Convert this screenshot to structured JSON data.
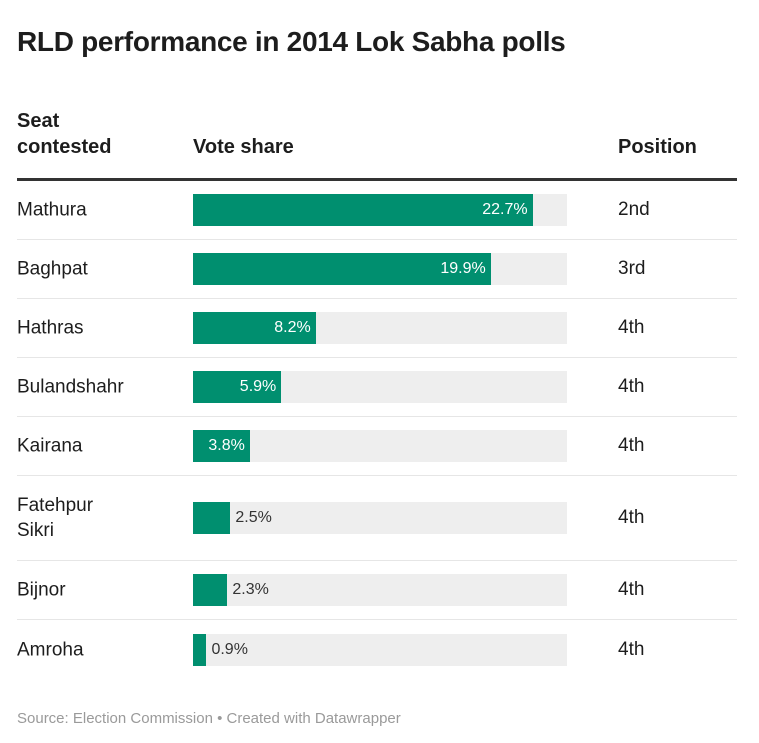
{
  "title": "RLD performance in 2014 Lok Sabha polls",
  "footer": {
    "source": "Source: Election Commission • Created with Datawrapper"
  },
  "colors": {
    "bar": "#008f6f",
    "track": "#eeeeee"
  },
  "chart_data": {
    "type": "table",
    "title": "RLD performance in 2014 Lok Sabha polls",
    "columns": [
      "Seat contested",
      "Vote share",
      "Position"
    ],
    "bar_column": "Vote share",
    "xlim": [
      0,
      25
    ],
    "rows": [
      {
        "seat": "Mathura",
        "vote_share": 22.7,
        "label": "22.7%",
        "position": "2nd"
      },
      {
        "seat": "Baghpat",
        "vote_share": 19.9,
        "label": "19.9%",
        "position": "3rd"
      },
      {
        "seat": "Hathras",
        "vote_share": 8.2,
        "label": "8.2%",
        "position": "4th"
      },
      {
        "seat": "Bulandshahr",
        "vote_share": 5.9,
        "label": "5.9%",
        "position": "4th"
      },
      {
        "seat": "Kairana",
        "vote_share": 3.8,
        "label": "3.8%",
        "position": "4th"
      },
      {
        "seat": "Fatehpur Sikri",
        "vote_share": 2.5,
        "label": "2.5%",
        "position": "4th"
      },
      {
        "seat": "Bijnor",
        "vote_share": 2.3,
        "label": "2.3%",
        "position": "4th"
      },
      {
        "seat": "Amroha",
        "vote_share": 0.9,
        "label": "0.9%",
        "position": "4th"
      }
    ]
  }
}
